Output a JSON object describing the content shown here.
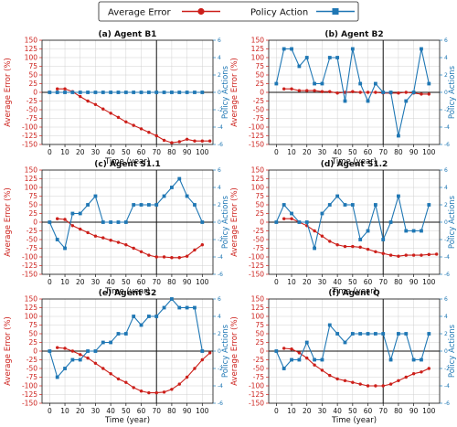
{
  "figure": {
    "legend": [
      {
        "name": "Average Error",
        "color": "#cc1f1a",
        "marker": "circle"
      },
      {
        "name": "Policy Action",
        "color": "#1f77b4",
        "marker": "square"
      }
    ]
  },
  "chart_data": [
    {
      "type": "line",
      "title": "(a) Agent B1",
      "xlabel": "Time (year)",
      "ylabel": "Average Error (%)",
      "ylabel2": "Policy Actions",
      "xlim": [
        -5,
        107
      ],
      "ylim": [
        -150,
        150
      ],
      "ylim2": [
        -6,
        6
      ],
      "xticks": [
        0,
        10,
        20,
        30,
        40,
        50,
        60,
        70,
        80,
        90,
        100
      ],
      "yticks": [
        -150,
        -125,
        -100,
        -75,
        -50,
        -25,
        0,
        25,
        50,
        75,
        100,
        125,
        150
      ],
      "yticks2": [
        -6,
        -4,
        -2,
        0,
        2,
        4,
        6
      ],
      "vline": 70,
      "series": [
        {
          "name": "Average Error",
          "axis": "left",
          "x": [
            5,
            10,
            15,
            20,
            25,
            30,
            35,
            40,
            45,
            50,
            55,
            60,
            65,
            70,
            75,
            80,
            85,
            90,
            95,
            100,
            105
          ],
          "y": [
            10,
            10,
            2,
            -12,
            -25,
            -35,
            -48,
            -60,
            -72,
            -85,
            -95,
            -105,
            -115,
            -125,
            -138,
            -145,
            -142,
            -135,
            -140,
            -140,
            -140
          ]
        },
        {
          "name": "Policy Action",
          "axis": "right",
          "x": [
            0,
            5,
            10,
            15,
            20,
            25,
            30,
            35,
            40,
            45,
            50,
            55,
            60,
            65,
            70,
            75,
            80,
            85,
            90,
            95,
            100
          ],
          "y": [
            0,
            0,
            0,
            0,
            0,
            0,
            0,
            0,
            0,
            0,
            0,
            0,
            0,
            0,
            0,
            0,
            0,
            0,
            0,
            0,
            0
          ]
        }
      ]
    },
    {
      "type": "line",
      "title": "(b) Agent B2",
      "xlabel": "Time (year)",
      "ylabel": "Average Error (%)",
      "ylabel2": "Policy Actions",
      "xlim": [
        -5,
        107
      ],
      "ylim": [
        -150,
        150
      ],
      "ylim2": [
        -6,
        6
      ],
      "xticks": [
        0,
        10,
        20,
        30,
        40,
        50,
        60,
        70,
        80,
        90,
        100
      ],
      "yticks": [
        -150,
        -125,
        -100,
        -75,
        -50,
        -25,
        0,
        25,
        50,
        75,
        100,
        125,
        150
      ],
      "yticks2": [
        -6,
        -4,
        -2,
        0,
        2,
        4,
        6
      ],
      "vline": 70,
      "series": [
        {
          "name": "Average Error",
          "axis": "left",
          "x": [
            5,
            10,
            15,
            20,
            25,
            30,
            35,
            40,
            45,
            50,
            55,
            60,
            65,
            70,
            75,
            80,
            85,
            90,
            95,
            100
          ],
          "y": [
            10,
            10,
            5,
            5,
            5,
            2,
            2,
            -2,
            0,
            2,
            0,
            0,
            0,
            -2,
            -2,
            -2,
            0,
            -2,
            -5,
            -5
          ]
        },
        {
          "name": "Policy Action",
          "axis": "right",
          "x": [
            0,
            5,
            10,
            15,
            20,
            25,
            30,
            35,
            40,
            45,
            50,
            55,
            60,
            65,
            70,
            75,
            80,
            85,
            90,
            95,
            100
          ],
          "y": [
            1,
            5,
            5,
            3,
            4,
            1,
            1,
            4,
            4,
            -1,
            5,
            1,
            -1,
            1,
            0,
            0,
            -5,
            -1,
            0,
            5,
            1
          ]
        }
      ]
    },
    {
      "type": "line",
      "title": "(c) Agent S1.1",
      "xlabel": "Time (year)",
      "ylabel": "Average Error (%)",
      "ylabel2": "Policy Actions",
      "xlim": [
        -5,
        107
      ],
      "ylim": [
        -150,
        150
      ],
      "ylim2": [
        -6,
        6
      ],
      "xticks": [
        0,
        10,
        20,
        30,
        40,
        50,
        60,
        70,
        80,
        90,
        100
      ],
      "yticks": [
        -150,
        -125,
        -100,
        -75,
        -50,
        -25,
        0,
        25,
        50,
        75,
        100,
        125,
        150
      ],
      "yticks2": [
        -6,
        -4,
        -2,
        0,
        2,
        4,
        6
      ],
      "vline": 70,
      "series": [
        {
          "name": "Average Error",
          "axis": "left",
          "x": [
            5,
            10,
            15,
            20,
            25,
            30,
            35,
            40,
            45,
            50,
            55,
            60,
            65,
            70,
            75,
            80,
            85,
            90,
            95,
            100
          ],
          "y": [
            10,
            8,
            -10,
            -20,
            -30,
            -40,
            -45,
            -52,
            -58,
            -65,
            -75,
            -85,
            -95,
            -100,
            -100,
            -102,
            -102,
            -98,
            -80,
            -65
          ]
        },
        {
          "name": "Policy Action",
          "axis": "right",
          "x": [
            0,
            5,
            10,
            15,
            20,
            25,
            30,
            35,
            40,
            45,
            50,
            55,
            60,
            65,
            70,
            75,
            80,
            85,
            90,
            95,
            100
          ],
          "y": [
            0,
            -2,
            -3,
            1,
            1,
            2,
            3,
            0,
            0,
            0,
            0,
            2,
            2,
            2,
            2,
            3,
            4,
            5,
            3,
            2,
            0
          ]
        }
      ]
    },
    {
      "type": "line",
      "title": "(d) Agent S1.2",
      "xlabel": "Time (year)",
      "ylabel": "Average Error (%)",
      "ylabel2": "Policy Actions",
      "xlim": [
        -5,
        107
      ],
      "ylim": [
        -150,
        150
      ],
      "ylim2": [
        -6,
        6
      ],
      "xticks": [
        0,
        10,
        20,
        30,
        40,
        50,
        60,
        70,
        80,
        90,
        100
      ],
      "yticks": [
        -150,
        -125,
        -100,
        -75,
        -50,
        -25,
        0,
        25,
        50,
        75,
        100,
        125,
        150
      ],
      "yticks2": [
        -6,
        -4,
        -2,
        0,
        2,
        4,
        6
      ],
      "vline": 70,
      "series": [
        {
          "name": "Average Error",
          "axis": "left",
          "x": [
            5,
            10,
            15,
            20,
            25,
            30,
            35,
            40,
            45,
            50,
            55,
            60,
            65,
            70,
            75,
            80,
            85,
            90,
            95,
            100,
            105
          ],
          "y": [
            10,
            10,
            0,
            -10,
            -25,
            -40,
            -55,
            -65,
            -70,
            -70,
            -72,
            -78,
            -85,
            -90,
            -95,
            -98,
            -95,
            -95,
            -95,
            -93,
            -92
          ]
        },
        {
          "name": "Policy Action",
          "axis": "right",
          "x": [
            0,
            5,
            10,
            15,
            20,
            25,
            30,
            35,
            40,
            45,
            50,
            55,
            60,
            65,
            70,
            75,
            80,
            85,
            90,
            95,
            100
          ],
          "y": [
            0,
            2,
            1,
            0,
            0,
            -3,
            1,
            2,
            3,
            2,
            2,
            -2,
            -1,
            2,
            -2,
            0,
            3,
            -1,
            -1,
            -1,
            2
          ]
        }
      ]
    },
    {
      "type": "line",
      "title": "(e) Agent S2",
      "xlabel": "Time (year)",
      "ylabel": "Average Error (%)",
      "ylabel2": "Policy Actions",
      "xlim": [
        -5,
        107
      ],
      "ylim": [
        -150,
        150
      ],
      "ylim2": [
        -6,
        6
      ],
      "xticks": [
        0,
        10,
        20,
        30,
        40,
        50,
        60,
        70,
        80,
        90,
        100
      ],
      "yticks": [
        -150,
        -125,
        -100,
        -75,
        -50,
        -25,
        0,
        25,
        50,
        75,
        100,
        125,
        150
      ],
      "yticks2": [
        -6,
        -4,
        -2,
        0,
        2,
        4,
        6
      ],
      "vline": 70,
      "series": [
        {
          "name": "Average Error",
          "axis": "left",
          "x": [
            5,
            10,
            15,
            20,
            25,
            30,
            35,
            40,
            45,
            50,
            55,
            60,
            65,
            70,
            75,
            80,
            85,
            90,
            95,
            100,
            105
          ],
          "y": [
            10,
            8,
            0,
            -10,
            -20,
            -35,
            -50,
            -65,
            -80,
            -90,
            -105,
            -115,
            -120,
            -120,
            -118,
            -110,
            -95,
            -75,
            -50,
            -25,
            -5
          ]
        },
        {
          "name": "Policy Action",
          "axis": "right",
          "x": [
            0,
            5,
            10,
            15,
            20,
            25,
            30,
            35,
            40,
            45,
            50,
            55,
            60,
            65,
            70,
            75,
            80,
            85,
            90,
            95,
            100
          ],
          "y": [
            0,
            -3,
            -2,
            -1,
            -1,
            0,
            0,
            1,
            1,
            2,
            2,
            4,
            3,
            4,
            4,
            5,
            6,
            5,
            5,
            5,
            0
          ]
        }
      ]
    },
    {
      "type": "line",
      "title": "(f) Agent Q",
      "xlabel": "Time (year)",
      "ylabel": "Average Error (%)",
      "ylabel2": "Policy Actions",
      "xlim": [
        -5,
        107
      ],
      "ylim": [
        -150,
        150
      ],
      "ylim2": [
        -6,
        6
      ],
      "xticks": [
        0,
        10,
        20,
        30,
        40,
        50,
        60,
        70,
        80,
        90,
        100
      ],
      "yticks": [
        -150,
        -125,
        -100,
        -75,
        -50,
        -25,
        0,
        25,
        50,
        75,
        100,
        125,
        150
      ],
      "yticks2": [
        -6,
        -4,
        -2,
        0,
        2,
        4,
        6
      ],
      "vline": 70,
      "series": [
        {
          "name": "Average Error",
          "axis": "left",
          "x": [
            5,
            10,
            15,
            20,
            25,
            30,
            35,
            40,
            45,
            50,
            55,
            60,
            65,
            70,
            75,
            80,
            85,
            90,
            95,
            100
          ],
          "y": [
            8,
            6,
            -5,
            -20,
            -40,
            -55,
            -70,
            -80,
            -85,
            -90,
            -95,
            -100,
            -100,
            -100,
            -95,
            -85,
            -75,
            -65,
            -60,
            -50
          ]
        },
        {
          "name": "Policy Action",
          "axis": "right",
          "x": [
            0,
            5,
            10,
            15,
            20,
            25,
            30,
            35,
            40,
            45,
            50,
            55,
            60,
            65,
            70,
            75,
            80,
            85,
            90,
            95,
            100
          ],
          "y": [
            0,
            -2,
            -1,
            -1,
            1,
            -1,
            -1,
            3,
            2,
            1,
            2,
            2,
            2,
            2,
            2,
            -1,
            2,
            2,
            -1,
            -1,
            2
          ]
        }
      ]
    }
  ]
}
